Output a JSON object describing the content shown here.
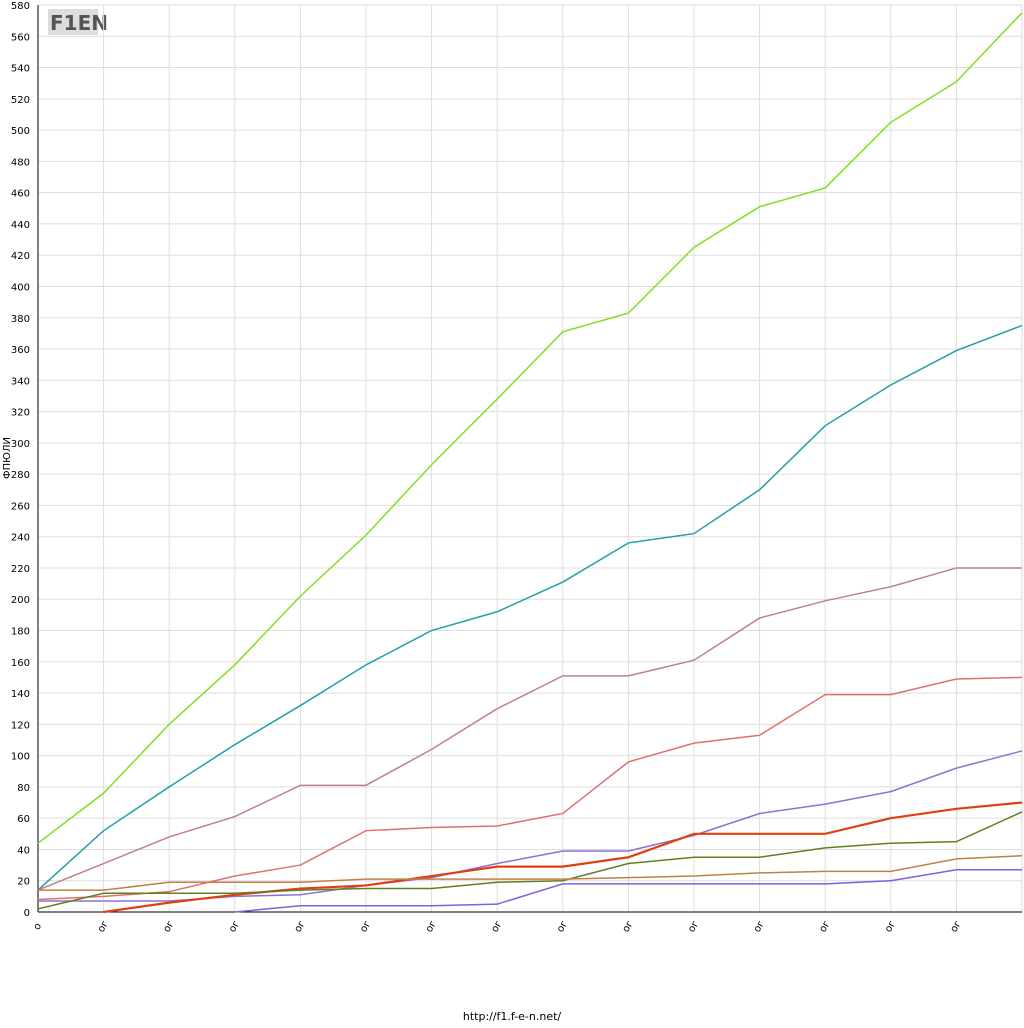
{
  "chart_data": {
    "type": "line",
    "y_label": "ФПЮЛИ",
    "footer": "http://f1.f-e-n.net/",
    "logo": "F1EN",
    "categories": [
      "о",
      "ог",
      "ог",
      "ог",
      "ог",
      "ог",
      "ог",
      "ог",
      "ог",
      "ог",
      "ог",
      "ог",
      "ог",
      "ог",
      "ог",
      null
    ],
    "ylim": [
      0,
      580
    ],
    "yticks": [
      0,
      20,
      40,
      60,
      80,
      100,
      120,
      140,
      160,
      180,
      200,
      220,
      240,
      260,
      280,
      300,
      320,
      340,
      360,
      380,
      400,
      420,
      440,
      460,
      480,
      500,
      520,
      540,
      560,
      580
    ],
    "grid": true,
    "series": [
      {
        "color": "#80e020",
        "values": [
          44,
          76,
          120,
          158,
          202,
          241,
          286,
          328,
          371,
          383,
          425,
          451,
          463,
          505,
          531,
          575
        ]
      },
      {
        "color": "#20a0a8",
        "values": [
          14,
          52,
          80,
          107,
          132,
          158,
          180,
          192,
          211,
          236,
          242,
          270,
          311,
          337,
          359,
          375
        ]
      },
      {
        "color": "#c08088",
        "values": [
          14,
          31,
          48,
          61,
          81,
          81,
          104,
          130,
          151,
          151,
          161,
          188,
          199,
          208,
          220,
          220
        ]
      },
      {
        "color": "#e07070",
        "values": [
          8,
          10,
          13,
          23,
          30,
          52,
          54,
          55,
          63,
          96,
          108,
          113,
          139,
          139,
          149,
          150
        ]
      },
      {
        "color": "#9070d0",
        "values": [
          7,
          7,
          7,
          10,
          11,
          17,
          22,
          31,
          39,
          39,
          49,
          63,
          69,
          77,
          92,
          103
        ]
      },
      {
        "color": "#e04010",
        "values": [
          null,
          0,
          6,
          11,
          15,
          17,
          23,
          29,
          29,
          35,
          50,
          50,
          50,
          60,
          66,
          70
        ]
      },
      {
        "color": "#608020",
        "values": [
          2,
          12,
          12,
          12,
          14,
          15,
          15,
          19,
          20,
          31,
          35,
          35,
          41,
          44,
          45,
          64
        ]
      },
      {
        "color": "#c08048",
        "values": [
          14,
          14,
          19,
          19,
          19,
          21,
          21,
          21,
          21,
          22,
          23,
          25,
          26,
          26,
          34,
          36
        ]
      },
      {
        "color": "#8060e0",
        "values": [
          null,
          null,
          null,
          0,
          4,
          4,
          4,
          5,
          18,
          18,
          18,
          18,
          18,
          20,
          27,
          27
        ]
      }
    ]
  }
}
